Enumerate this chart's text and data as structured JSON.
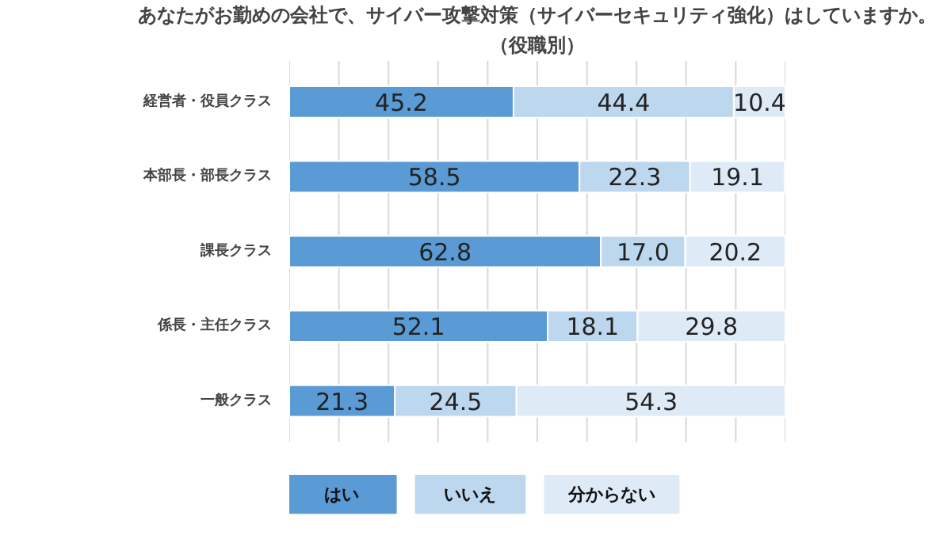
{
  "chart_data": {
    "type": "bar",
    "orientation": "horizontal",
    "stacked": true,
    "title": "あなたがお勤めの会社で、サイバー攻撃対策（サイバーセキュリティ強化）はしていますか。",
    "subtitle": "（役職別）",
    "categories": [
      "経営者・役員クラス",
      "本部長・部長クラス",
      "課長クラス",
      "係長・主任クラス",
      "一般クラス"
    ],
    "series": [
      {
        "name": "はい",
        "color": "#5b9bd5",
        "values": [
          45.2,
          58.5,
          62.8,
          52.1,
          21.3
        ],
        "value_labels": [
          "45.2",
          "58.5",
          "62.8",
          "52.1",
          "21.3"
        ]
      },
      {
        "name": "いいえ",
        "color": "#bdd7ee",
        "values": [
          44.4,
          22.3,
          17.0,
          18.1,
          24.5
        ],
        "value_labels": [
          "44.4",
          "22.3",
          "17.0",
          "18.1",
          "24.5"
        ]
      },
      {
        "name": "分からない",
        "color": "#deebf7",
        "values": [
          10.4,
          19.1,
          20.2,
          29.8,
          54.3
        ],
        "value_labels": [
          "10.4",
          "19.1",
          "20.2",
          "29.8",
          "54.3"
        ]
      }
    ],
    "xlim": [
      0,
      100
    ],
    "grid": "x",
    "legend": "bottom",
    "tick_labels": "y"
  }
}
